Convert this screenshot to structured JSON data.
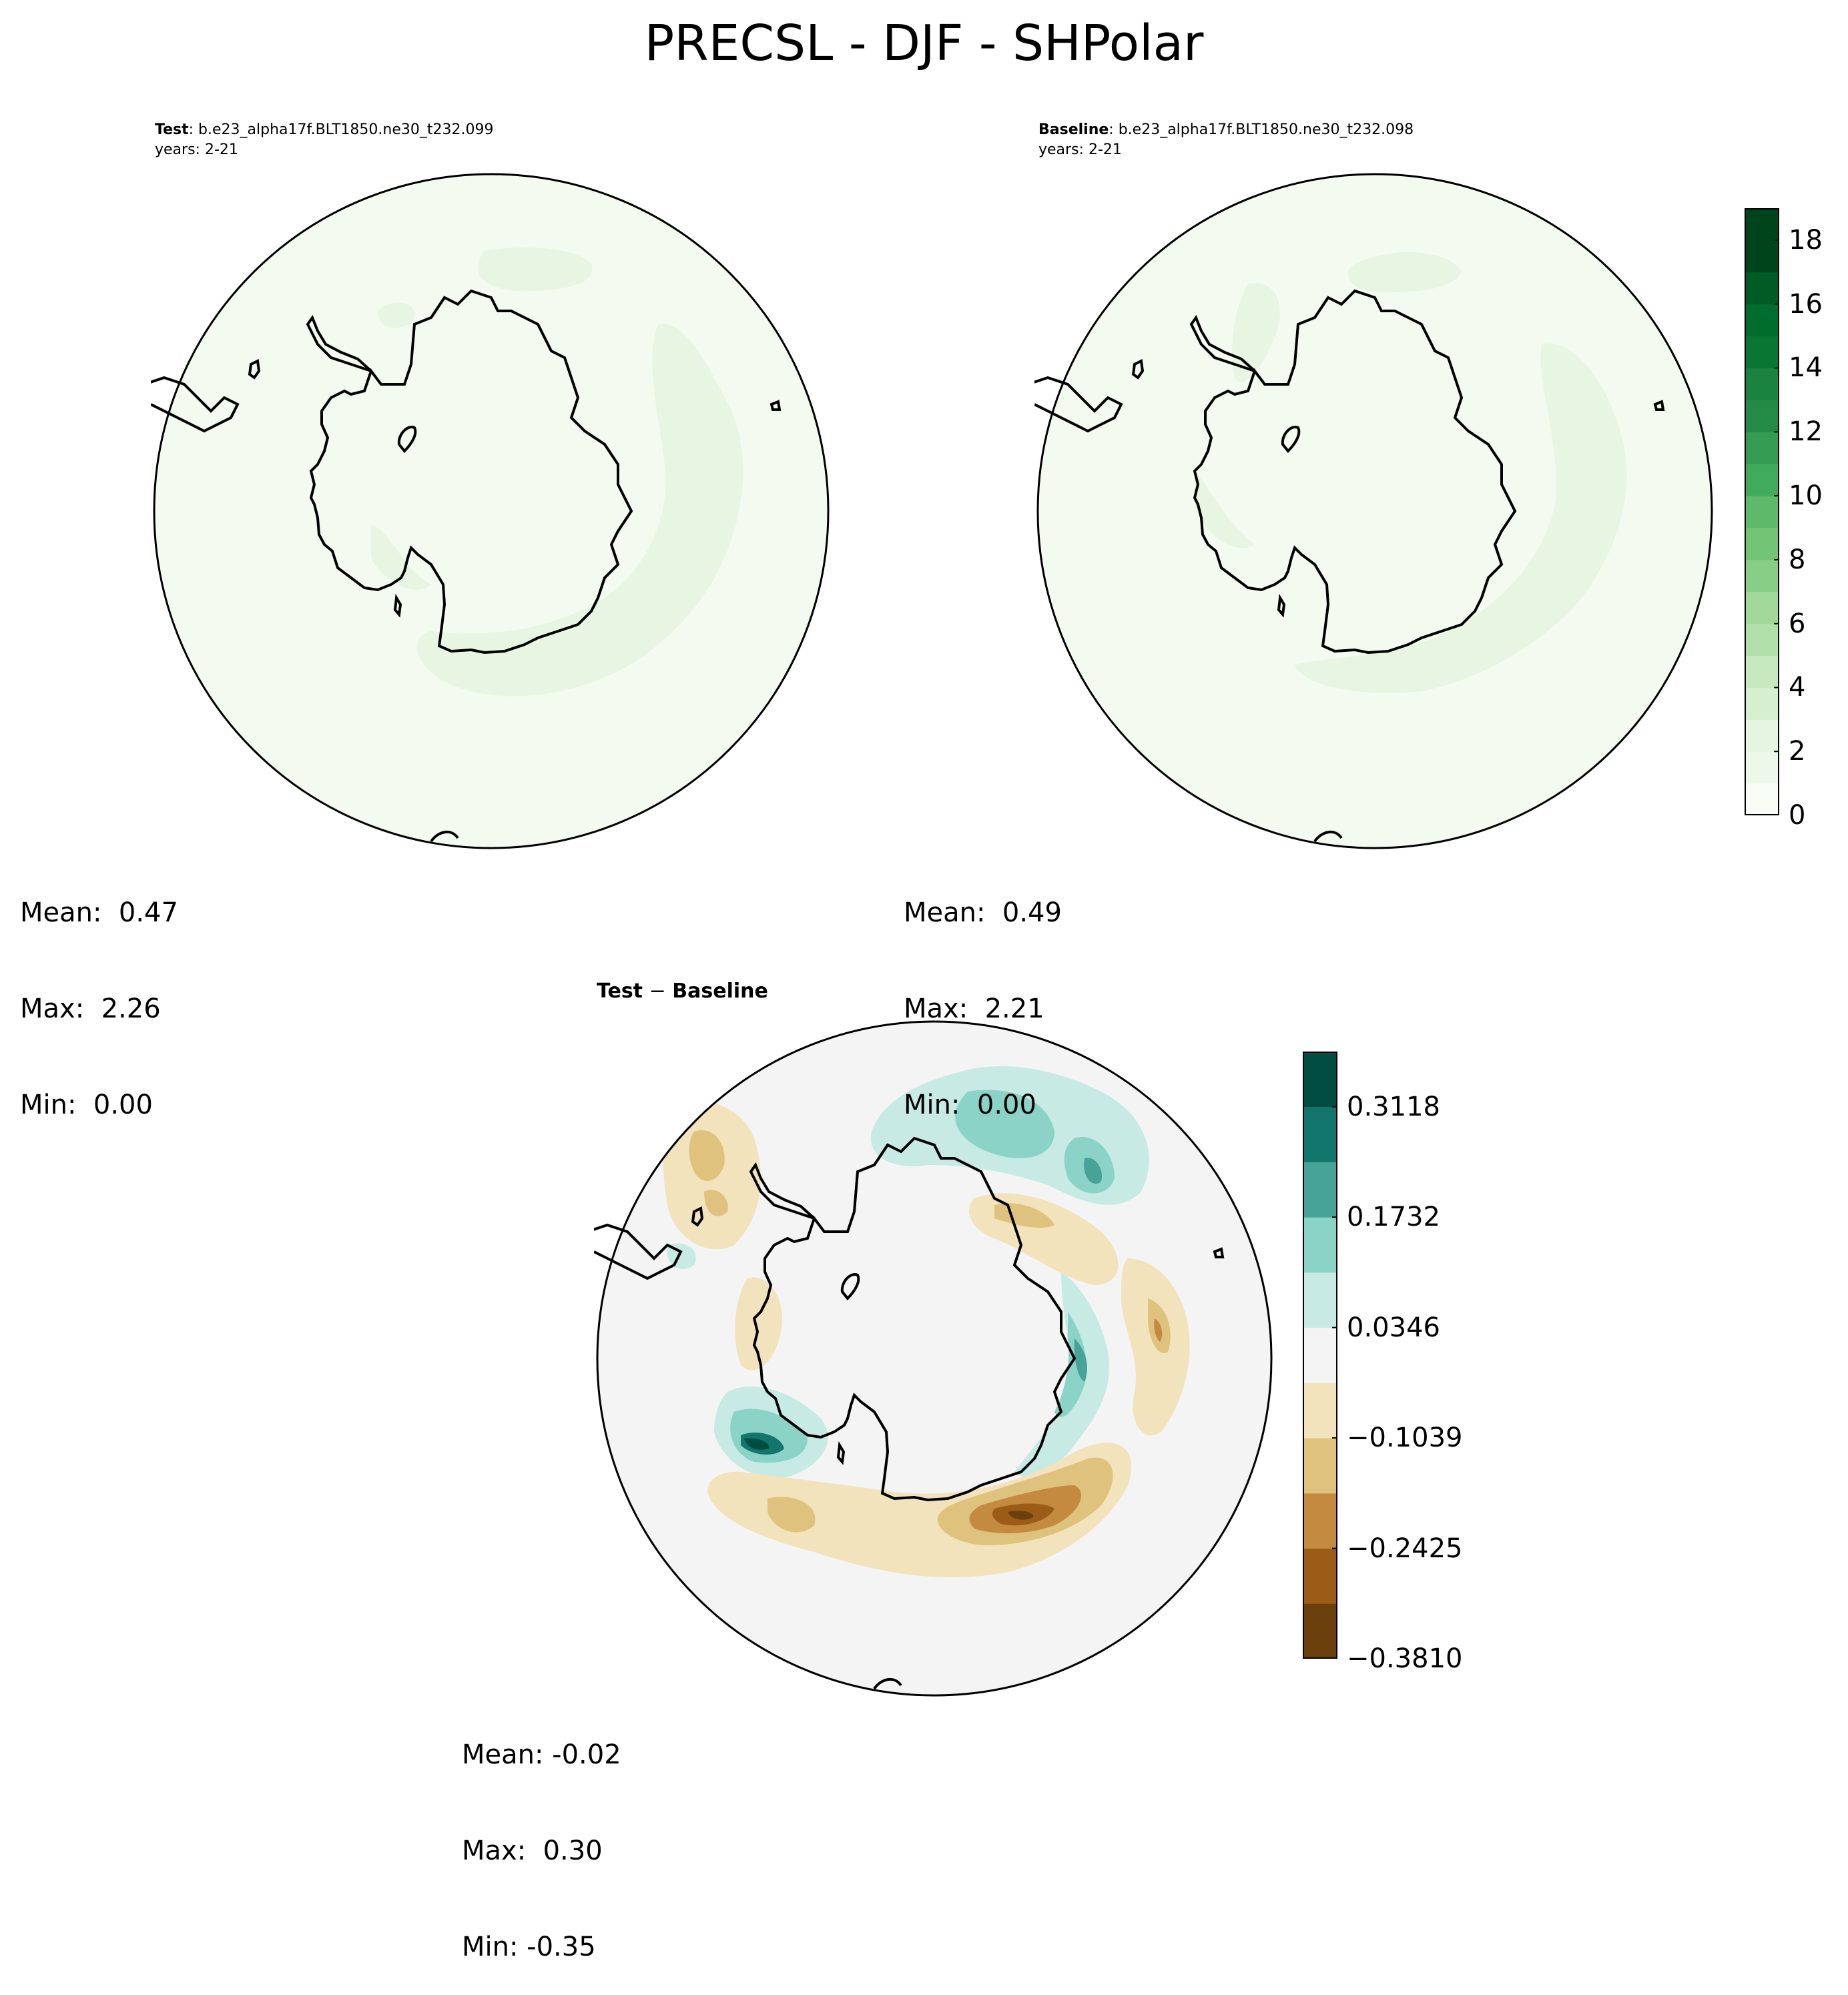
{
  "figure": {
    "title": "PRECSL - DJF - SHPolar"
  },
  "panels": {
    "test": {
      "label": "Test",
      "case": ": b.e23_alpha17f.BLT1850.ne30_t232.099",
      "years": "years: 2-21",
      "mean": "Mean:  0.47",
      "max": "Max:  2.26",
      "min": "Min:  0.00"
    },
    "baseline": {
      "label": "Baseline",
      "case": ": b.e23_alpha17f.BLT1850.ne30_t232.098",
      "years": "years: 2-21",
      "mean": "Mean:  0.49",
      "max": "Max:  2.21",
      "min": "Min:  0.00"
    },
    "diff": {
      "title_a": "Test",
      "title_sep": " − ",
      "title_b": "Baseline",
      "mean": "Mean: -0.02",
      "max": "Max:  0.30",
      "min": "Min: -0.35"
    }
  },
  "colorbars": {
    "abs": {
      "ticks": [
        "0",
        "2",
        "4",
        "6",
        "8",
        "10",
        "12",
        "14",
        "16",
        "18"
      ],
      "range": [
        0,
        19
      ],
      "colors": [
        "#f7fcf5",
        "#eef8ea",
        "#e5f5e0",
        "#d6efd0",
        "#c7e9c0",
        "#b1e0ab",
        "#a1d99b",
        "#89ce86",
        "#74c476",
        "#5eb96b",
        "#41ab5d",
        "#349d53",
        "#238b45",
        "#19833f",
        "#0a7633",
        "#006d2c",
        "#005b25",
        "#00441b",
        "#00441b"
      ]
    },
    "diff": {
      "ticks": [
        "0.3118",
        "0.1732",
        "0.0346",
        "−0.1039",
        "−0.2425",
        "−0.3810"
      ],
      "colors": [
        "#6b3f0b",
        "#9a5c17",
        "#c48a3f",
        "#dfc27d",
        "#f3e3bd",
        "#f3f4f3",
        "#c7eae5",
        "#8bd3c7",
        "#47a297",
        "#13766d",
        "#024d41"
      ]
    }
  }
}
